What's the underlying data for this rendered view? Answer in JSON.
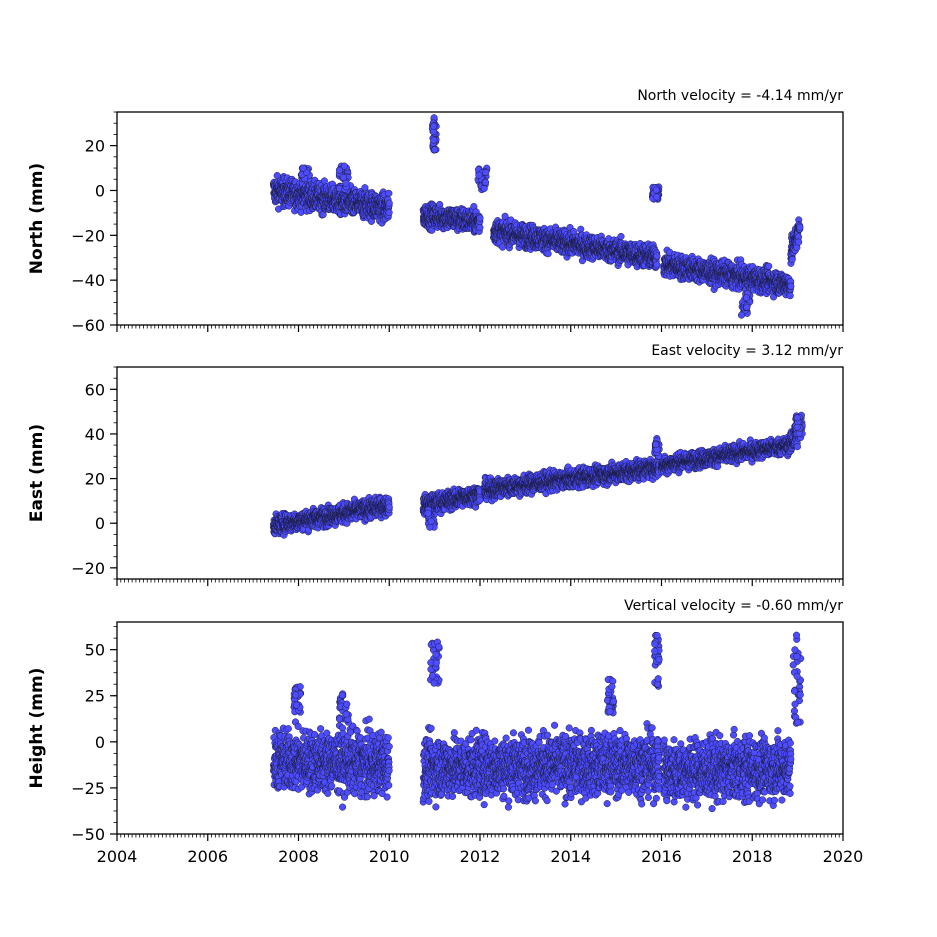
{
  "chart_data": [
    {
      "type": "scatter",
      "title": "North velocity = -4.14 mm/yr",
      "ylabel": "North (mm)",
      "xlim": [
        2004,
        2020
      ],
      "ylim": [
        -60,
        35
      ],
      "yticks": [
        -60,
        -40,
        -20,
        0,
        20
      ],
      "ytick_labels": [
        "−60",
        "−40",
        "−20",
        "0",
        "20"
      ],
      "xticks": [
        2004,
        2006,
        2008,
        2010,
        2012,
        2014,
        2016,
        2018,
        2020
      ],
      "series": [
        {
          "segments": [
            {
              "x": [
                2007.45,
                2010.0
              ],
              "y": [
                0,
                -8
              ],
              "spread": 3
            },
            {
              "x": [
                2010.75,
                2012.0
              ],
              "y": [
                -11,
                -14
              ],
              "spread": 2.5
            },
            {
              "x": [
                2012.3,
                2015.9
              ],
              "y": [
                -18,
                -30
              ],
              "spread": 2.5
            },
            {
              "x": [
                2016.05,
                2018.85
              ],
              "y": [
                -33,
                -42
              ],
              "spread": 2.5
            },
            {
              "x": [
                2018.85,
                2019.05
              ],
              "y": [
                -28,
                -17
              ],
              "spread": 3
            }
          ],
          "excursions": [
            {
              "x": [
                2008.05,
                2008.25
              ],
              "y": [
                5,
                10
              ]
            },
            {
              "x": [
                2008.9,
                2009.1
              ],
              "y": [
                0,
                11
              ]
            },
            {
              "x": [
                2010.95,
                2011.05
              ],
              "y": [
                18,
                34
              ]
            },
            {
              "x": [
                2011.95,
                2012.15
              ],
              "y": [
                0,
                10
              ]
            },
            {
              "x": [
                2015.8,
                2015.95
              ],
              "y": [
                -4,
                2
              ]
            },
            {
              "x": [
                2017.75,
                2017.95
              ],
              "y": [
                -56,
                -46
              ]
            }
          ]
        }
      ]
    },
    {
      "type": "scatter",
      "title": "East velocity = 3.12 mm/yr",
      "ylabel": "East (mm)",
      "xlim": [
        2004,
        2020
      ],
      "ylim": [
        -25,
        70
      ],
      "yticks": [
        -20,
        0,
        20,
        40,
        60
      ],
      "ytick_labels": [
        "−20",
        "0",
        "20",
        "40",
        "60"
      ],
      "xticks": [
        2004,
        2006,
        2008,
        2010,
        2012,
        2014,
        2016,
        2018,
        2020
      ],
      "series": [
        {
          "segments": [
            {
              "x": [
                2007.45,
                2010.0
              ],
              "y": [
                -1,
                8
              ],
              "spread": 2
            },
            {
              "x": [
                2010.75,
                2012.0
              ],
              "y": [
                8,
                13
              ],
              "spread": 2
            },
            {
              "x": [
                2012.1,
                2015.95
              ],
              "y": [
                15,
                25
              ],
              "spread": 2
            },
            {
              "x": [
                2016.0,
                2018.85
              ],
              "y": [
                26,
                35
              ],
              "spread": 1.8
            },
            {
              "x": [
                2018.85,
                2019.1
              ],
              "y": [
                36,
                44
              ],
              "spread": 3
            }
          ],
          "excursions": [
            {
              "x": [
                2010.85,
                2011.0
              ],
              "y": [
                -3,
                6
              ]
            },
            {
              "x": [
                2015.85,
                2015.95
              ],
              "y": [
                30,
                38
              ]
            },
            {
              "x": [
                2018.95,
                2019.05
              ],
              "y": [
                40,
                49
              ]
            }
          ]
        }
      ]
    },
    {
      "type": "scatter",
      "title": "Vertical velocity = -0.60 mm/yr",
      "ylabel": "Height (mm)",
      "xlim": [
        2004,
        2020
      ],
      "ylim": [
        -50,
        65
      ],
      "yticks": [
        -50,
        -25,
        0,
        25,
        50
      ],
      "ytick_labels": [
        "−50",
        "−25",
        "0",
        "25",
        "50"
      ],
      "xticks": [
        2004,
        2006,
        2008,
        2010,
        2012,
        2014,
        2016,
        2018,
        2020
      ],
      "xtick_labels": [
        "2004",
        "2006",
        "2008",
        "2010",
        "2012",
        "2014",
        "2016",
        "2018",
        "2020"
      ],
      "series": [
        {
          "segments": [
            {
              "x": [
                2007.45,
                2010.0
              ],
              "y": [
                -10,
                -12
              ],
              "spread": 8
            },
            {
              "x": [
                2010.75,
                2015.95
              ],
              "y": [
                -14,
                -12
              ],
              "spread": 8
            },
            {
              "x": [
                2016.05,
                2018.85
              ],
              "y": [
                -16,
                -14
              ],
              "spread": 8
            }
          ],
          "excursions": [
            {
              "x": [
                2007.9,
                2008.05
              ],
              "y": [
                15,
                30
              ]
            },
            {
              "x": [
                2008.9,
                2009.1
              ],
              "y": [
                10,
                26
              ]
            },
            {
              "x": [
                2010.9,
                2011.1
              ],
              "y": [
                30,
                56
              ]
            },
            {
              "x": [
                2014.8,
                2014.95
              ],
              "y": [
                15,
                34
              ]
            },
            {
              "x": [
                2015.85,
                2015.95
              ],
              "y": [
                30,
                58
              ]
            },
            {
              "x": [
                2018.9,
                2019.1
              ],
              "y": [
                10,
                63
              ]
            }
          ]
        }
      ]
    }
  ]
}
